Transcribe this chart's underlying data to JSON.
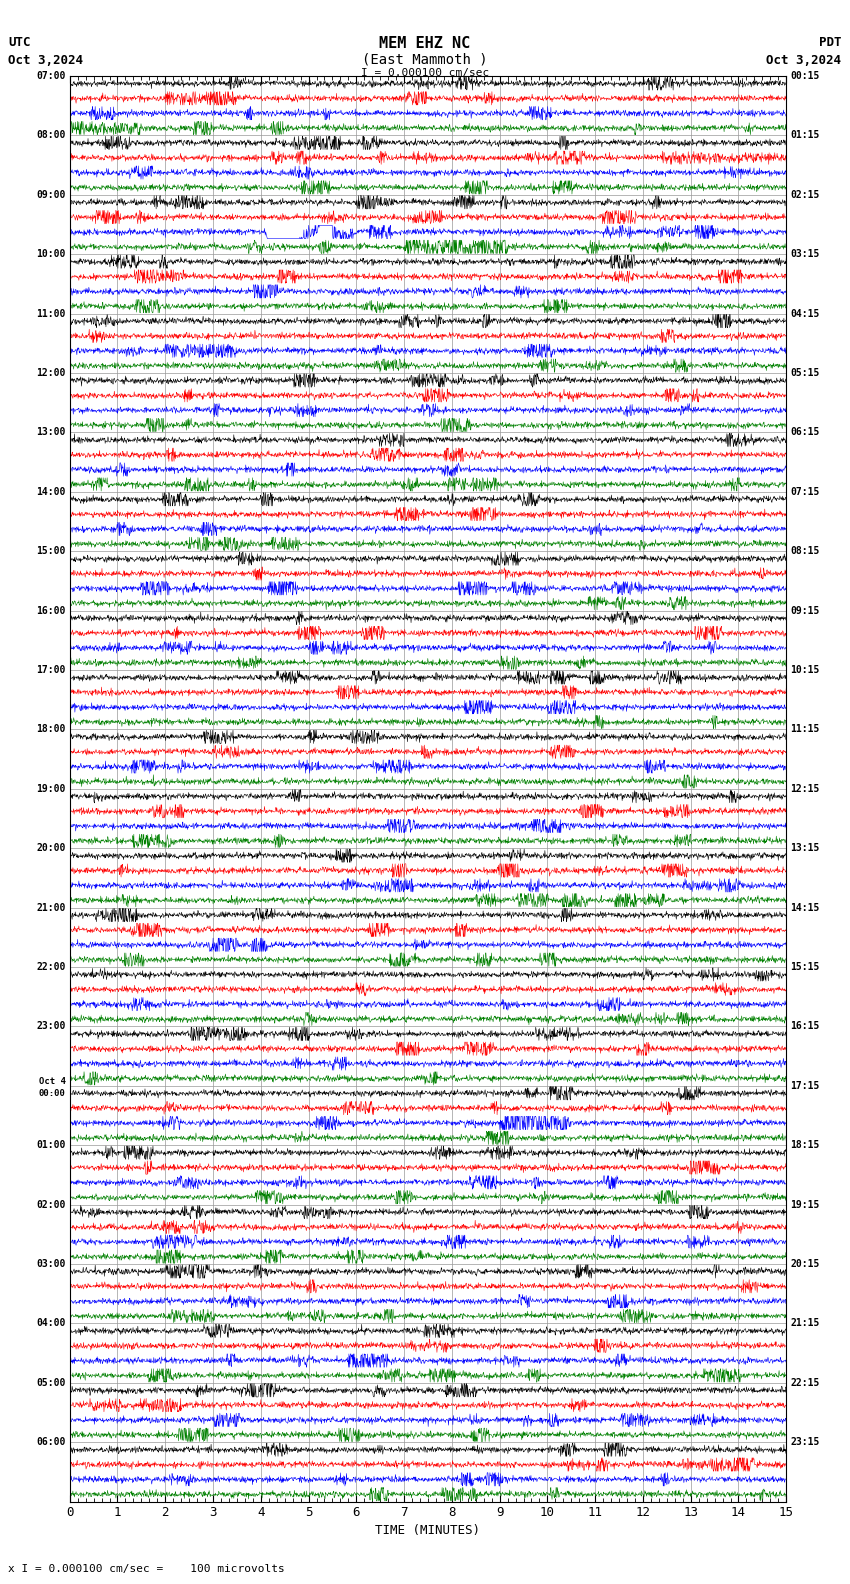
{
  "title_line1": "MEM EHZ NC",
  "title_line2": "(East Mammoth )",
  "scale_label": "I = 0.000100 cm/sec",
  "utc_label": "UTC",
  "pdt_label": "PDT",
  "date_left": "Oct 3,2024",
  "date_right": "Oct 3,2024",
  "xlabel": "TIME (MINUTES)",
  "bottom_label": "x I = 0.000100 cm/sec =    100 microvolts",
  "bg_color": "#ffffff",
  "grid_color": "#888888",
  "trace_colors": [
    "black",
    "red",
    "blue",
    "green"
  ],
  "xlim": [
    0,
    15
  ],
  "xticks": [
    0,
    1,
    2,
    3,
    4,
    5,
    6,
    7,
    8,
    9,
    10,
    11,
    12,
    13,
    14,
    15
  ],
  "n_traces": 96,
  "left_labels": [
    "07:00",
    "",
    "",
    "",
    "08:00",
    "",
    "",
    "",
    "09:00",
    "",
    "",
    "",
    "10:00",
    "",
    "",
    "",
    "11:00",
    "",
    "",
    "",
    "12:00",
    "",
    "",
    "",
    "13:00",
    "",
    "",
    "",
    "14:00",
    "",
    "",
    "",
    "15:00",
    "",
    "",
    "",
    "16:00",
    "",
    "",
    "",
    "17:00",
    "",
    "",
    "",
    "18:00",
    "",
    "",
    "",
    "19:00",
    "",
    "",
    "",
    "20:00",
    "",
    "",
    "",
    "21:00",
    "",
    "",
    "",
    "22:00",
    "",
    "",
    "",
    "23:00",
    "",
    "",
    "",
    "Oct 4\n00:00",
    "",
    "",
    "",
    "01:00",
    "",
    "",
    "",
    "02:00",
    "",
    "",
    "",
    "03:00",
    "",
    "",
    "",
    "04:00",
    "",
    "",
    "",
    "05:00",
    "",
    "",
    "",
    "06:00",
    "",
    "",
    ""
  ],
  "right_labels": [
    "00:15",
    "",
    "",
    "",
    "01:15",
    "",
    "",
    "",
    "02:15",
    "",
    "",
    "",
    "03:15",
    "",
    "",
    "",
    "04:15",
    "",
    "",
    "",
    "05:15",
    "",
    "",
    "",
    "06:15",
    "",
    "",
    "",
    "07:15",
    "",
    "",
    "",
    "08:15",
    "",
    "",
    "",
    "09:15",
    "",
    "",
    "",
    "10:15",
    "",
    "",
    "",
    "11:15",
    "",
    "",
    "",
    "12:15",
    "",
    "",
    "",
    "13:15",
    "",
    "",
    "",
    "14:15",
    "",
    "",
    "",
    "15:15",
    "",
    "",
    "",
    "16:15",
    "",
    "",
    "",
    "17:15",
    "",
    "",
    "",
    "18:15",
    "",
    "",
    "",
    "19:15",
    "",
    "",
    "",
    "20:15",
    "",
    "",
    "",
    "21:15",
    "",
    "",
    "",
    "22:15",
    "",
    "",
    "",
    "23:15",
    "",
    "",
    ""
  ]
}
